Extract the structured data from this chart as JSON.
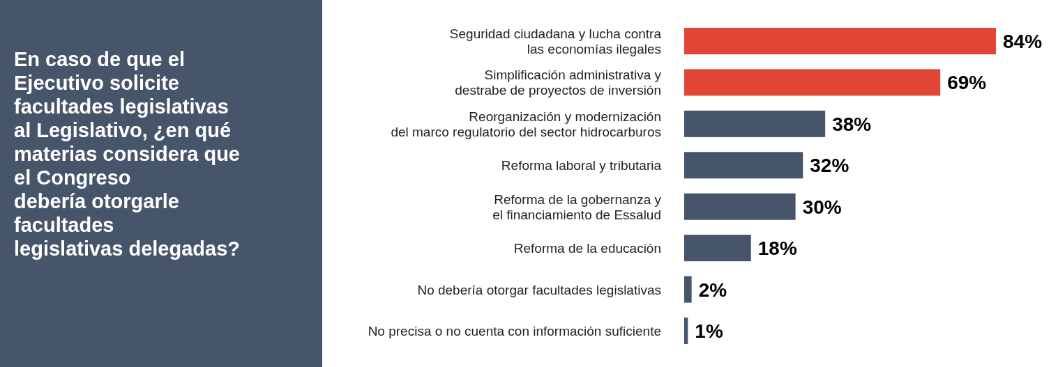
{
  "chart_data": {
    "type": "bar",
    "orientation": "horizontal",
    "title": "En caso de que el\nEjecutivo solicite\nfacultades legislativas\nal Legislativo, ¿en qué\nmaterias considera que\nel Congreso\ndebería otorgarle\nfacultades\nlegislativas delegadas?",
    "categories": [
      "Seguridad ciudadana y lucha contra\nlas economías ilegales",
      "Simplificación administrativa y\ndestrabe de proyectos de inversión",
      "Reorganización y modernización\ndel marco regulatorio del sector hidrocarburos",
      "Reforma laboral y tributaria",
      "Reforma de la gobernanza y\nel financiamiento de Essalud",
      "Reforma de la educación",
      "No debería otorgar facultades legislativas",
      "No precisa o no cuenta con información suficiente"
    ],
    "values": [
      84,
      69,
      38,
      32,
      30,
      18,
      2,
      1
    ],
    "value_labels": [
      "84%",
      "69%",
      "38%",
      "32%",
      "30%",
      "18%",
      "2%",
      "1%"
    ],
    "colors": [
      "#e34535",
      "#e34535",
      "#47556b",
      "#47556b",
      "#47556b",
      "#47556b",
      "#47556b",
      "#47556b"
    ]
  }
}
